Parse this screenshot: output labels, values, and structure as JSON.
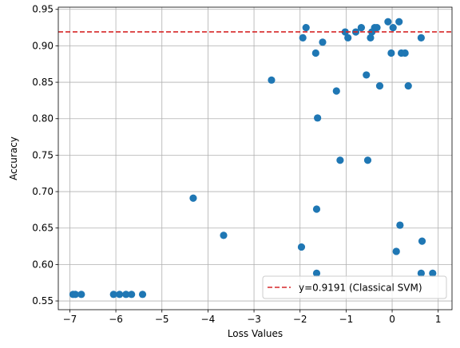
{
  "chart_data": {
    "type": "scatter",
    "title": "",
    "xlabel": "Loss Values",
    "ylabel": "Accuracy",
    "xlim": [
      -7.25,
      1.3
    ],
    "ylim": [
      0.538,
      0.953
    ],
    "grid": true,
    "xticks": [
      -7,
      -6,
      -5,
      -4,
      -3,
      -2,
      -1,
      0,
      1
    ],
    "yticks": [
      0.55,
      0.6,
      0.65,
      0.7,
      0.75,
      0.8,
      0.85,
      0.9,
      0.95
    ],
    "xtick_labels": [
      "−7",
      "−6",
      "−5",
      "−4",
      "−3",
      "−2",
      "−1",
      "0",
      "1"
    ],
    "ytick_labels": [
      "0.55",
      "0.60",
      "0.65",
      "0.70",
      "0.75",
      "0.80",
      "0.85",
      "0.90",
      "0.95"
    ],
    "series": [
      {
        "marker_color": "#1f77b4",
        "points": [
          [
            -6.93,
            0.559
          ],
          [
            -6.88,
            0.559
          ],
          [
            -6.75,
            0.559
          ],
          [
            -6.05,
            0.559
          ],
          [
            -5.92,
            0.559
          ],
          [
            -5.78,
            0.559
          ],
          [
            -5.66,
            0.559
          ],
          [
            -5.42,
            0.559
          ],
          [
            -4.32,
            0.691
          ],
          [
            -3.66,
            0.64
          ],
          [
            -2.62,
            0.853
          ],
          [
            -1.94,
            0.911
          ],
          [
            -1.87,
            0.925
          ],
          [
            -1.97,
            0.624
          ],
          [
            -1.66,
            0.89
          ],
          [
            -1.62,
            0.801
          ],
          [
            -1.64,
            0.676
          ],
          [
            -1.64,
            0.588
          ],
          [
            -1.51,
            0.905
          ],
          [
            -1.21,
            0.838
          ],
          [
            -1.13,
            0.743
          ],
          [
            -1.02,
            0.919
          ],
          [
            -0.96,
            0.911
          ],
          [
            -0.79,
            0.919
          ],
          [
            -0.67,
            0.925
          ],
          [
            -0.56,
            0.86
          ],
          [
            -0.53,
            0.743
          ],
          [
            -0.47,
            0.911
          ],
          [
            -0.44,
            0.919
          ],
          [
            -0.38,
            0.925
          ],
          [
            -0.33,
            0.925
          ],
          [
            -0.27,
            0.845
          ],
          [
            -0.09,
            0.933
          ],
          [
            -0.02,
            0.89
          ],
          [
            0.02,
            0.925
          ],
          [
            0.09,
            0.618
          ],
          [
            0.15,
            0.933
          ],
          [
            0.17,
            0.654
          ],
          [
            0.2,
            0.89
          ],
          [
            0.28,
            0.89
          ],
          [
            0.35,
            0.845
          ],
          [
            0.63,
            0.911
          ],
          [
            0.63,
            0.588
          ],
          [
            0.65,
            0.632
          ],
          [
            0.88,
            0.588
          ]
        ]
      }
    ],
    "reference_line": {
      "orientation": "horizontal",
      "y": 0.9191,
      "color": "#d62728",
      "style": "dashed",
      "label": "y=0.9191 (Classical SVM)"
    },
    "legend": {
      "placement": "lower-right"
    }
  }
}
